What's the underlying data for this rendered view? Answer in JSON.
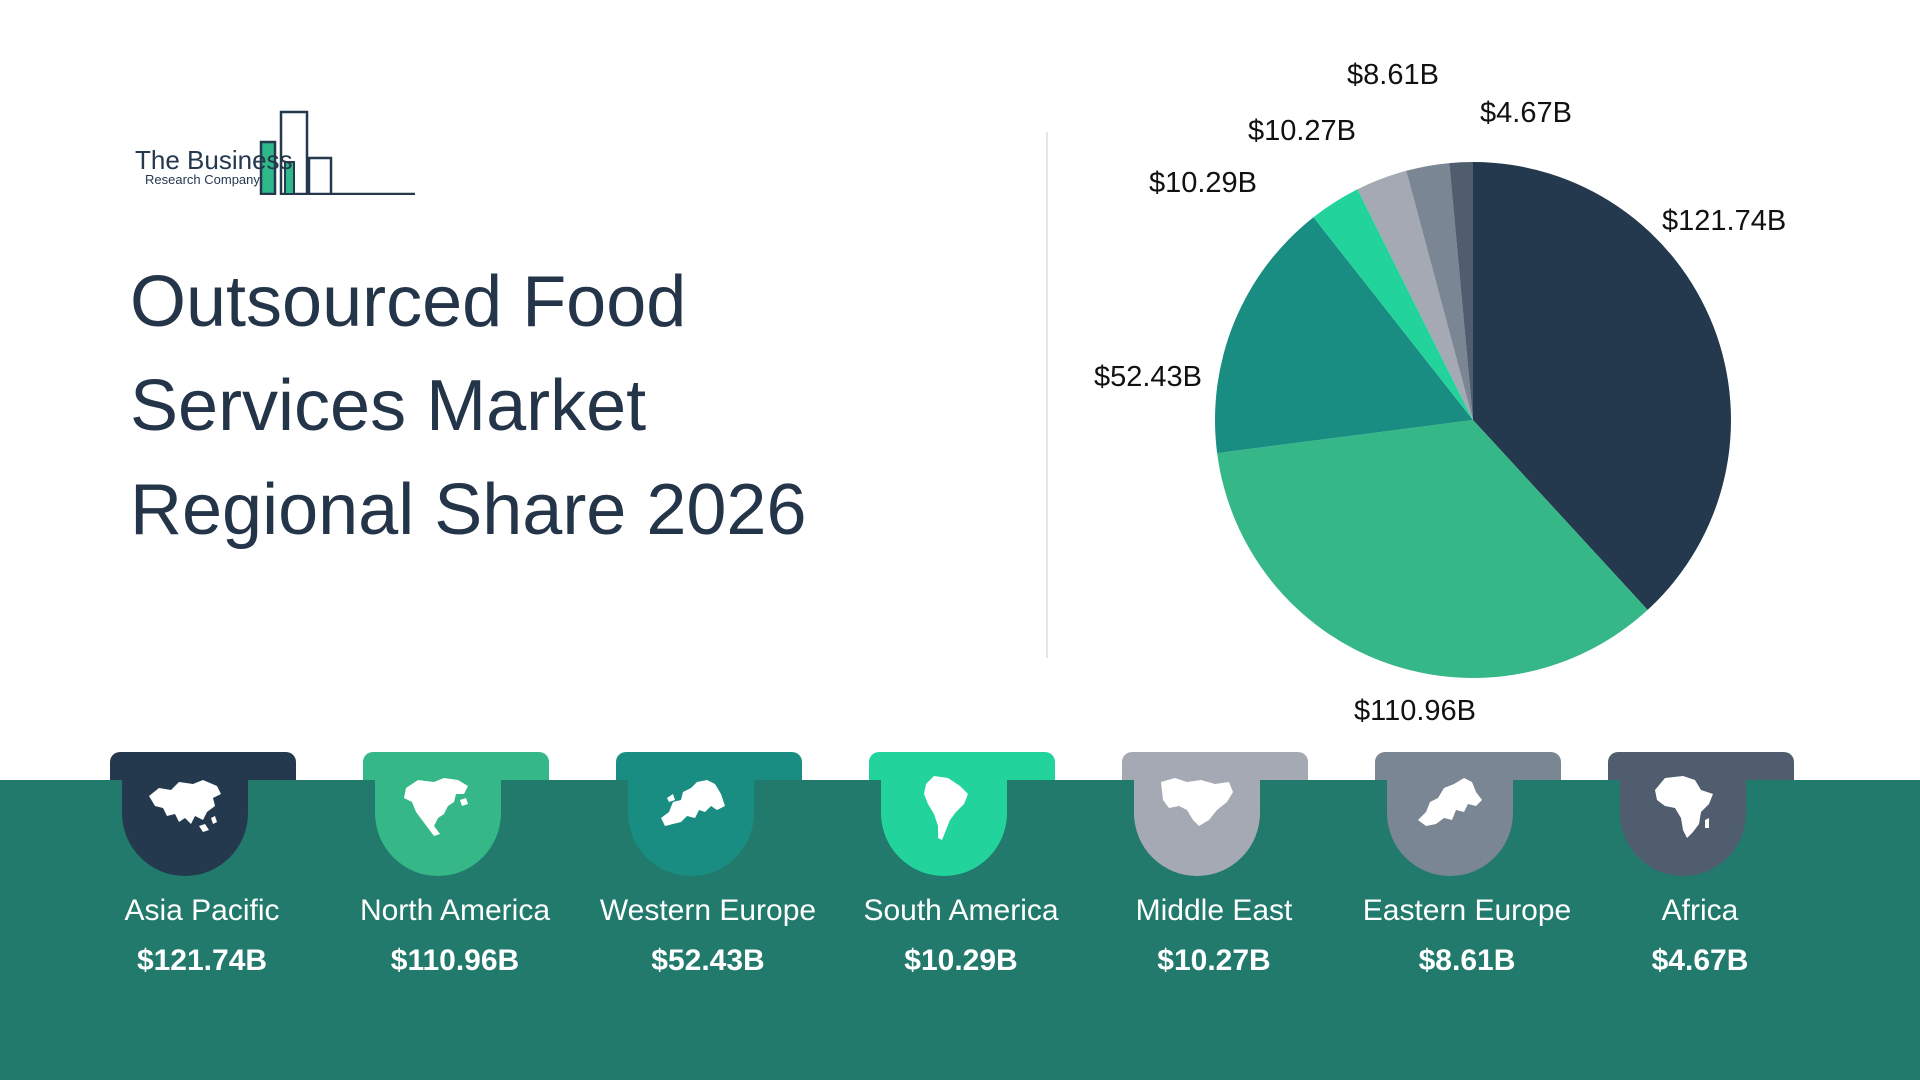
{
  "logo": {
    "line1": "The Business",
    "line2": "Research Company",
    "accent_color": "#2fb88a",
    "outline_color": "#24384e"
  },
  "title_lines": [
    "Outsourced Food",
    "Services Market",
    "Regional Share 2026"
  ],
  "chart_data": {
    "type": "pie",
    "title": "Outsourced Food Services Market Regional Share 2026",
    "slices": [
      {
        "label": "Asia Pacific",
        "value": 121.74,
        "display": "$121.74B",
        "color": "#24384e"
      },
      {
        "label": "North America",
        "value": 110.96,
        "display": "$110.96B",
        "color": "#35b787"
      },
      {
        "label": "Western Europe",
        "value": 52.43,
        "display": "$52.43B",
        "color": "#1a8d83"
      },
      {
        "label": "South America",
        "value": 10.29,
        "display": "$10.29B",
        "color": "#22d49b"
      },
      {
        "label": "Middle East",
        "value": 10.27,
        "display": "$10.27B",
        "color": "#a5a9b3"
      },
      {
        "label": "Eastern Europe",
        "value": 8.61,
        "display": "$8.61B",
        "color": "#7a8694"
      },
      {
        "label": "Africa",
        "value": 4.67,
        "display": "$4.67B",
        "color": "#4f5d6e"
      }
    ],
    "start_angle": "12 o'clock",
    "direction": "clockwise"
  },
  "regions": [
    {
      "name": "Asia Pacific",
      "value": "$121.74B",
      "color": "#24384e",
      "icon": "asia-map-icon"
    },
    {
      "name": "North America",
      "value": "$110.96B",
      "color": "#35b787",
      "icon": "north-america-map-icon"
    },
    {
      "name": "Western Europe",
      "value": "$52.43B",
      "color": "#1a8d83",
      "icon": "western-europe-map-icon"
    },
    {
      "name": "South America",
      "value": "$10.29B",
      "color": "#22d49b",
      "icon": "south-america-map-icon"
    },
    {
      "name": "Middle East",
      "value": "$10.27B",
      "color": "#a5a9b3",
      "icon": "middle-east-map-icon"
    },
    {
      "name": "Eastern Europe",
      "value": "$8.61B",
      "color": "#7a8694",
      "icon": "eastern-europe-map-icon"
    },
    {
      "name": "Africa",
      "value": "$4.67B",
      "color": "#4f5d6e",
      "icon": "africa-map-icon"
    }
  ],
  "band_color": "#217a6b"
}
